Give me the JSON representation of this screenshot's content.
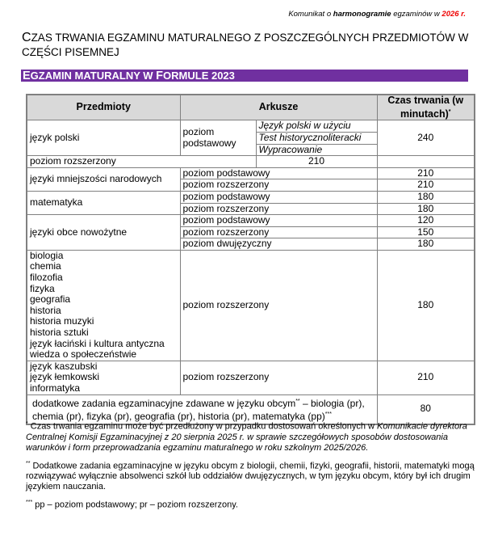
{
  "header": {
    "prefix": "Komunikat o ",
    "bold": "harmonogramie",
    "middle": " egzaminów w ",
    "year": "2026 r.",
    "year_color": "#e00000"
  },
  "title": {
    "first": "C",
    "rest": "ZAS TRWANIA EGZAMINU MATURALNEGO Z POSZCZEGÓLNYCH PRZEDMIOTÓW W CZĘŚCI PISEMNEJ"
  },
  "band": {
    "e": "E",
    "gzamin": "GZAMIN MATURALNY W ",
    "f": "F",
    "ormule": "ORMULE 2023",
    "color": "#7030a0"
  },
  "table": {
    "headers": {
      "subjects": "Przedmioty",
      "sheets": "Arkusze",
      "duration": "Czas trwania (w minutach)",
      "duration_mark": "*"
    },
    "polski": {
      "subject": "język polski",
      "level": "poziom podstawowy",
      "parts": [
        "Język polski w użyciu",
        "Test historycznoliteracki",
        "Wypracowanie"
      ],
      "time": "240",
      "ext_level": "poziom rozszerzony",
      "ext_time": "210"
    },
    "mniejszosci": {
      "subject": "języki mniejszości narodowych",
      "rows": [
        {
          "level": "poziom podstawowy",
          "time": "210"
        },
        {
          "level": "poziom rozszerzony",
          "time": "210"
        }
      ]
    },
    "matematyka": {
      "subject": "matematyka",
      "rows": [
        {
          "level": "poziom podstawowy",
          "time": "180"
        },
        {
          "level": "poziom rozszerzony",
          "time": "180"
        }
      ]
    },
    "obce": {
      "subject": "języki obce nowożytne",
      "rows": [
        {
          "level": "poziom podstawowy",
          "time": "120"
        },
        {
          "level": "poziom rozszerzony",
          "time": "150"
        },
        {
          "level": "poziom dwujęzyczny",
          "time": "180"
        }
      ]
    },
    "group1": {
      "subjects": [
        "biologia",
        "chemia",
        "filozofia",
        "fizyka",
        "geografia",
        "historia",
        "historia muzyki",
        "historia sztuki",
        "język łaciński i kultura antyczna",
        "wiedza o społeczeństwie"
      ],
      "level": "poziom rozszerzony",
      "time": "180"
    },
    "group2": {
      "subjects": [
        "język kaszubski",
        "język łemkowski",
        "informatyka"
      ],
      "level": "poziom rozszerzony",
      "time": "210"
    },
    "extra": {
      "text1": "dodatkowe zadania egzaminacyjne zdawane w języku obcym",
      "mark1": "**",
      "text2": " – biologia (pr), chemia (pr), fizyka (pr), geografia (pr), historia (pr), matematyka (pp)",
      "mark2": "***",
      "time": "80"
    }
  },
  "notes": {
    "n1": {
      "mark": "*",
      "text": " Czas trwania egzaminu może być przedłużony w przypadku dostosowań określonych w ",
      "italic": "Komunikacie dyrektora Centralnej Komisji Egzaminacyjnej z 20 sierpnia 2025 r. w sprawie szczegółowych sposobów dostosowania warunków i form przeprowadzania egzaminu maturalnego w roku szkolnym 2025/2026."
    },
    "n2": {
      "mark": "**",
      "text": " Dodatkowe zadania egzaminacyjne w języku obcym z biologii, chemii, fizyki, geografii, historii, matematyki mogą rozwiązywać wyłącznie absolwenci szkół lub oddziałów dwujęzycznych, w tym języku obcym, który był ich drugim językiem nauczania."
    },
    "n3": {
      "mark": "***",
      "text": " pp – poziom podstawowy; pr – poziom rozszerzony."
    }
  }
}
